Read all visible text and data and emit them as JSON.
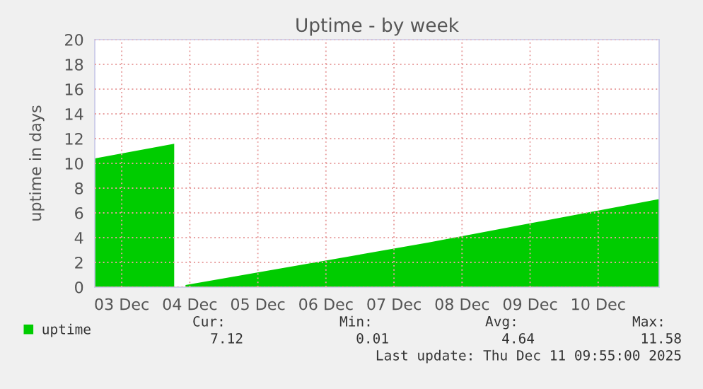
{
  "chart_data": {
    "type": "area",
    "title": "Uptime - by week",
    "ylabel": "uptime in days",
    "series": [
      {
        "name": "uptime",
        "color": "#00cc00",
        "x": [
          "2025-12-03T02:30",
          "2025-12-04T06:30",
          "2025-12-04T07:00",
          "2025-12-04T10:30",
          "2025-12-08T00:00",
          "2025-12-11T09:30"
        ],
        "values": [
          10.4,
          11.58,
          null,
          0.17,
          3.6,
          7.12
        ]
      }
    ],
    "xlim": [
      "2025-12-03T02:30",
      "2025-12-11T09:30"
    ],
    "xticks": [
      {
        "value": "2025-12-03T12:00",
        "label": "03 Dec"
      },
      {
        "value": "2025-12-04T12:00",
        "label": "04 Dec"
      },
      {
        "value": "2025-12-05T12:00",
        "label": "05 Dec"
      },
      {
        "value": "2025-12-06T12:00",
        "label": "06 Dec"
      },
      {
        "value": "2025-12-07T12:00",
        "label": "07 Dec"
      },
      {
        "value": "2025-12-08T12:00",
        "label": "08 Dec"
      },
      {
        "value": "2025-12-09T12:00",
        "label": "09 Dec"
      },
      {
        "value": "2025-12-10T12:00",
        "label": "10 Dec"
      }
    ],
    "ylim": [
      0,
      20
    ],
    "yticks": [
      0,
      2,
      4,
      6,
      8,
      10,
      12,
      14,
      16,
      18,
      20
    ],
    "grid": true,
    "legend": "bottom",
    "annotations": [
      "Cur:",
      "Min:",
      "Avg:",
      "Max:",
      "7.12",
      "0.01",
      "4.64",
      "11.58",
      "Last update: Thu Dec 11 09:55:00 2025"
    ]
  }
}
